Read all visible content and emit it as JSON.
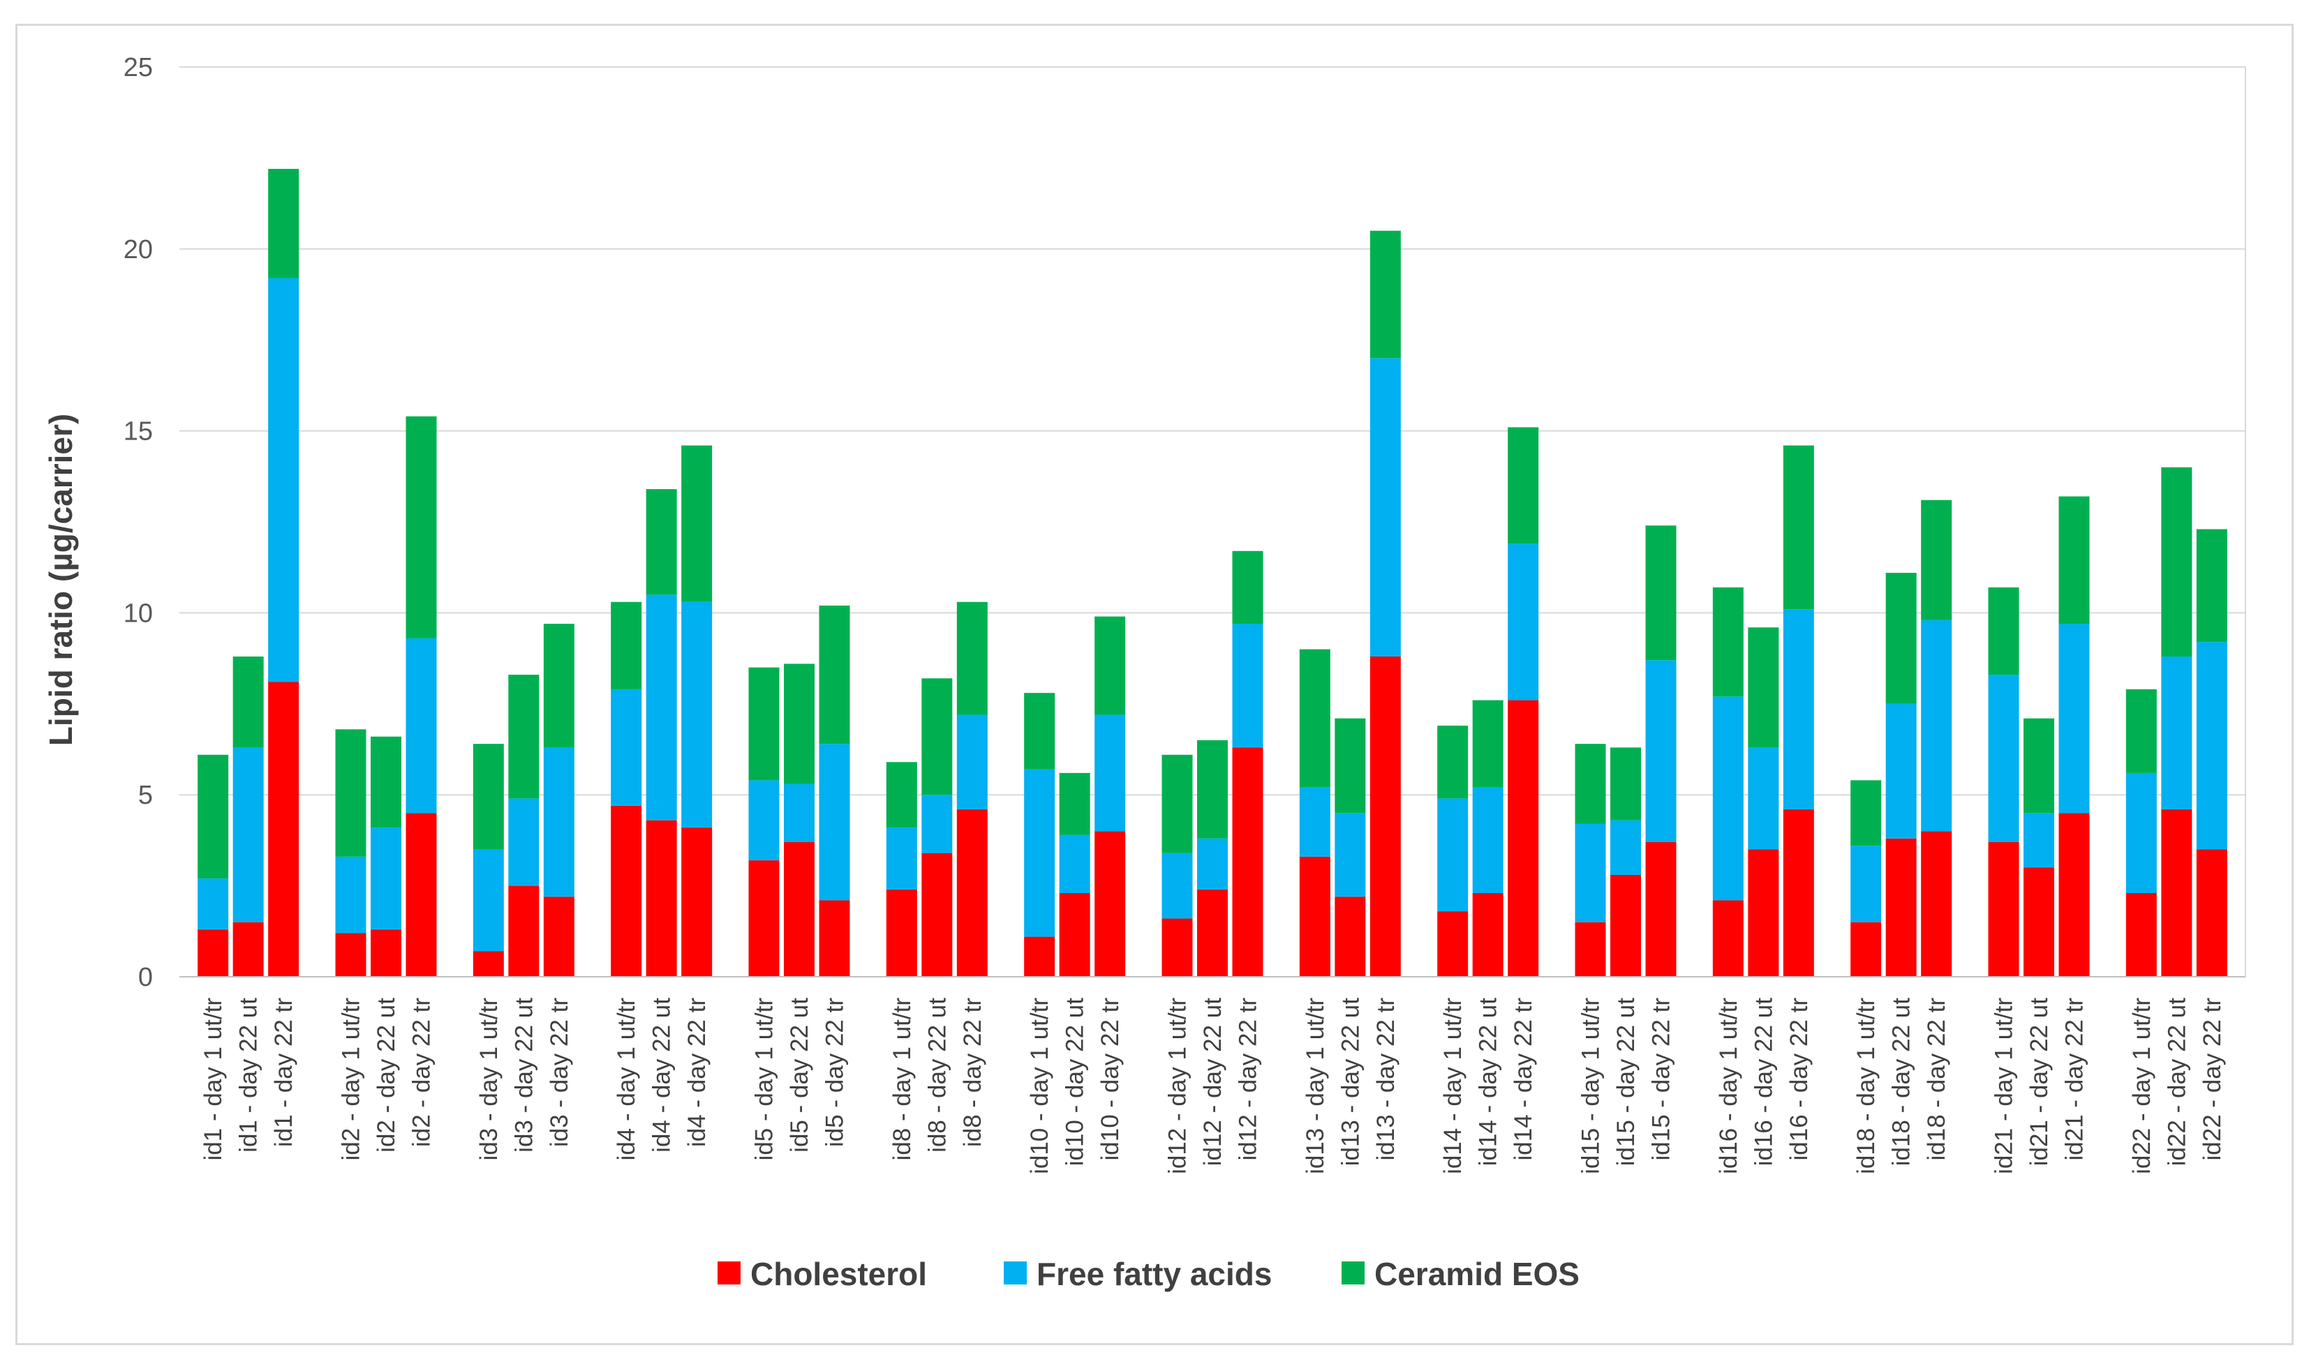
{
  "chart_data": {
    "type": "bar",
    "stacked": true,
    "title": "",
    "xlabel": "",
    "ylabel": "Lipid ratio (µg/carrier)",
    "ylim": [
      0,
      25
    ],
    "yticks": [
      0,
      5,
      10,
      15,
      20,
      25
    ],
    "grid": true,
    "legend_position": "bottom",
    "colors": {
      "Cholesterol": "#ff0000",
      "Free fatty acids": "#00b0f0",
      "Ceramid EOS": "#00b050"
    },
    "groups": [
      {
        "categories": [
          "id1 - day 1 ut/tr",
          "id1 - day 22 ut",
          "id1 - day 22 tr"
        ]
      },
      {
        "categories": [
          "id2 - day 1 ut/tr",
          "id2 - day 22 ut",
          "id2 - day 22 tr"
        ]
      },
      {
        "categories": [
          "id3 - day 1 ut/tr",
          "id3 - day 22 ut",
          "id3 - day 22 tr"
        ]
      },
      {
        "categories": [
          "id4 - day 1 ut/tr",
          "id4 - day 22 ut",
          "id4 - day 22 tr"
        ]
      },
      {
        "categories": [
          "id5 - day 1 ut/tr",
          "id5 - day 22 ut",
          "id5 - day 22 tr"
        ]
      },
      {
        "categories": [
          "id8 - day 1 ut/tr",
          "id8 - day 22 ut",
          "id8 - day 22 tr"
        ]
      },
      {
        "categories": [
          "id10 - day 1 ut/tr",
          "id10 - day 22 ut",
          "id10 - day 22 tr"
        ]
      },
      {
        "categories": [
          "id12 - day 1 ut/tr",
          "id12 - day 22 ut",
          "id12 - day 22 tr"
        ]
      },
      {
        "categories": [
          "id13 - day 1 ut/tr",
          "id13 - day 22 ut",
          "id13 - day 22 tr"
        ]
      },
      {
        "categories": [
          "id14 - day 1 ut/tr",
          "id14 - day 22 ut",
          "id14 - day 22 tr"
        ]
      },
      {
        "categories": [
          "id15 - day 1 ut/tr",
          "id15 - day 22 ut",
          "id15 - day 22 tr"
        ]
      },
      {
        "categories": [
          "id16 - day 1 ut/tr",
          "id16 - day 22 ut",
          "id16 - day 22 tr"
        ]
      },
      {
        "categories": [
          "id18 - day 1 ut/tr",
          "id18 - day 22 ut",
          "id18 - day 22 tr"
        ]
      },
      {
        "categories": [
          "id21 - day 1 ut/tr",
          "id21 - day 22 ut",
          "id21 - day 22 tr"
        ]
      },
      {
        "categories": [
          "id22 - day 1 ut/tr",
          "id22 - day 22 ut",
          "id22 - day 22 tr"
        ]
      }
    ],
    "series": [
      {
        "name": "Cholesterol",
        "values": [
          [
            1.3,
            1.5,
            8.1
          ],
          [
            1.2,
            1.3,
            4.5
          ],
          [
            0.7,
            2.5,
            2.2
          ],
          [
            4.7,
            4.3,
            4.1
          ],
          [
            3.2,
            3.7,
            2.1
          ],
          [
            2.4,
            3.4,
            4.6
          ],
          [
            1.1,
            2.3,
            4.0
          ],
          [
            1.6,
            2.4,
            6.3
          ],
          [
            3.3,
            2.2,
            8.8
          ],
          [
            1.8,
            2.3,
            7.6
          ],
          [
            1.5,
            2.8,
            3.7
          ],
          [
            2.1,
            3.5,
            4.6
          ],
          [
            1.5,
            3.8,
            4.0
          ],
          [
            3.7,
            3.0,
            4.5
          ],
          [
            2.3,
            4.6,
            3.5
          ]
        ]
      },
      {
        "name": "Free fatty acids",
        "values": [
          [
            1.4,
            4.8,
            11.1
          ],
          [
            2.1,
            2.8,
            4.8
          ],
          [
            2.8,
            2.4,
            4.1
          ],
          [
            3.2,
            6.2,
            6.2
          ],
          [
            2.2,
            1.6,
            4.3
          ],
          [
            1.7,
            1.6,
            2.6
          ],
          [
            4.6,
            1.6,
            3.2
          ],
          [
            1.8,
            1.4,
            3.4
          ],
          [
            1.9,
            2.3,
            8.2
          ],
          [
            3.1,
            2.9,
            4.3
          ],
          [
            2.7,
            1.5,
            5.0
          ],
          [
            5.6,
            2.8,
            5.5
          ],
          [
            2.1,
            3.7,
            5.8
          ],
          [
            4.6,
            1.5,
            5.2
          ],
          [
            3.3,
            4.2,
            5.7
          ]
        ]
      },
      {
        "name": "Ceramid EOS",
        "values": [
          [
            3.4,
            2.5,
            3.0
          ],
          [
            3.5,
            2.5,
            6.1
          ],
          [
            2.9,
            3.4,
            3.4
          ],
          [
            2.4,
            2.9,
            4.3
          ],
          [
            3.1,
            3.3,
            3.8
          ],
          [
            1.8,
            3.2,
            3.1
          ],
          [
            2.1,
            1.7,
            2.7
          ],
          [
            2.7,
            2.7,
            2.0
          ],
          [
            3.8,
            2.6,
            3.5
          ],
          [
            2.0,
            2.4,
            3.2
          ],
          [
            2.2,
            2.0,
            3.7
          ],
          [
            3.0,
            3.3,
            4.5
          ],
          [
            1.8,
            3.6,
            3.3
          ],
          [
            2.4,
            2.6,
            3.5
          ],
          [
            2.3,
            5.2,
            3.1
          ]
        ]
      }
    ]
  }
}
